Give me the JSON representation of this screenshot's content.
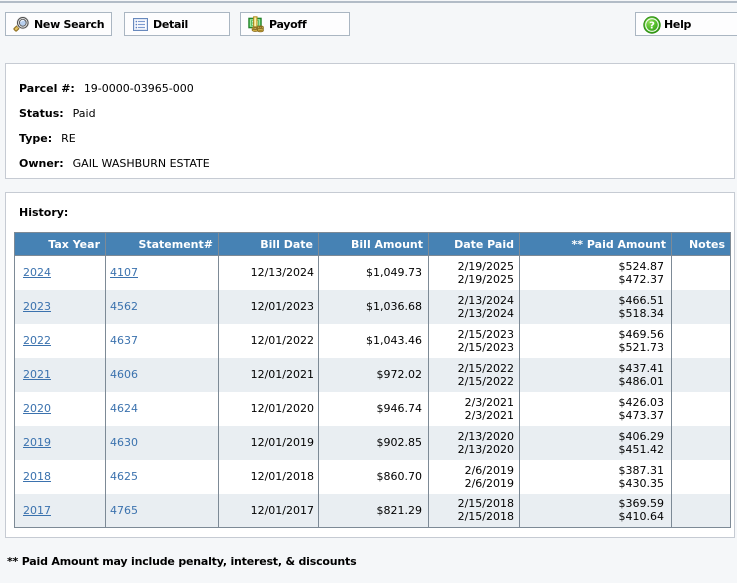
{
  "toolbar": {
    "new_search_label": "New Search",
    "detail_label": "Detail",
    "payoff_label": "Payoff",
    "help_label": "Help"
  },
  "parcel": {
    "parcel_label": "Parcel #:",
    "parcel_number": "19-0000-03965-000",
    "status_label": "Status:",
    "status_value": "Paid",
    "type_label": "Type:",
    "type_value": "RE",
    "owner_label": "Owner:",
    "owner_value": "GAIL WASHBURN ESTATE"
  },
  "history": {
    "section_label": "History:",
    "columns": [
      "Tax Year",
      "Statement#",
      "Bill Date",
      "Bill Amount",
      "Date Paid",
      "** Paid Amount",
      "Notes"
    ],
    "rows": [
      {
        "tax_year": "2024",
        "statement": "4107",
        "statement_underlined": true,
        "bill_date": "12/13/2024",
        "bill_amount": "$1,049.73",
        "date_paid": [
          "2/19/2025",
          "2/19/2025"
        ],
        "paid_amount": [
          "$524.87",
          "$472.37"
        ],
        "notes": ""
      },
      {
        "tax_year": "2023",
        "statement": "4562",
        "statement_underlined": false,
        "bill_date": "12/01/2023",
        "bill_amount": "$1,036.68",
        "date_paid": [
          "2/13/2024",
          "2/13/2024"
        ],
        "paid_amount": [
          "$466.51",
          "$518.34"
        ],
        "notes": ""
      },
      {
        "tax_year": "2022",
        "statement": "4637",
        "statement_underlined": false,
        "bill_date": "12/01/2022",
        "bill_amount": "$1,043.46",
        "date_paid": [
          "2/15/2023",
          "2/15/2023"
        ],
        "paid_amount": [
          "$469.56",
          "$521.73"
        ],
        "notes": ""
      },
      {
        "tax_year": "2021",
        "statement": "4606",
        "statement_underlined": false,
        "bill_date": "12/01/2021",
        "bill_amount": "$972.02",
        "date_paid": [
          "2/15/2022",
          "2/15/2022"
        ],
        "paid_amount": [
          "$437.41",
          "$486.01"
        ],
        "notes": ""
      },
      {
        "tax_year": "2020",
        "statement": "4624",
        "statement_underlined": false,
        "bill_date": "12/01/2020",
        "bill_amount": "$946.74",
        "date_paid": [
          "2/3/2021",
          "2/3/2021"
        ],
        "paid_amount": [
          "$426.03",
          "$473.37"
        ],
        "notes": ""
      },
      {
        "tax_year": "2019",
        "statement": "4630",
        "statement_underlined": false,
        "bill_date": "12/01/2019",
        "bill_amount": "$902.85",
        "date_paid": [
          "2/13/2020",
          "2/13/2020"
        ],
        "paid_amount": [
          "$406.29",
          "$451.42"
        ],
        "notes": ""
      },
      {
        "tax_year": "2018",
        "statement": "4625",
        "statement_underlined": false,
        "bill_date": "12/01/2018",
        "bill_amount": "$860.70",
        "date_paid": [
          "2/6/2019",
          "2/6/2019"
        ],
        "paid_amount": [
          "$387.31",
          "$430.35"
        ],
        "notes": ""
      },
      {
        "tax_year": "2017",
        "statement": "4765",
        "statement_underlined": false,
        "bill_date": "12/01/2017",
        "bill_amount": "$821.29",
        "date_paid": [
          "2/15/2018",
          "2/15/2018"
        ],
        "paid_amount": [
          "$369.59",
          "$410.64"
        ],
        "notes": ""
      }
    ],
    "footnote": "** Paid Amount may include penalty, interest, & discounts"
  },
  "colors": {
    "table_header_bg": "#4682b4",
    "table_row_alt_bg": "#e9eef2",
    "link": "#3b72ae",
    "page_bg": "#f5f7f9",
    "panel_border": "#c6cbd3",
    "table_border": "#7d8a96"
  },
  "chart_data": {
    "type": "table",
    "title": "History",
    "columns": [
      "Tax Year",
      "Statement#",
      "Bill Date",
      "Bill Amount",
      "Date Paid",
      "** Paid Amount",
      "Notes"
    ],
    "rows": [
      [
        "2024",
        "4107",
        "12/13/2024",
        "$1,049.73",
        "2/19/2025 2/19/2025",
        "$524.87 $472.37",
        ""
      ],
      [
        "2023",
        "4562",
        "12/01/2023",
        "$1,036.68",
        "2/13/2024 2/13/2024",
        "$466.51 $518.34",
        ""
      ],
      [
        "2022",
        "4637",
        "12/01/2022",
        "$1,043.46",
        "2/15/2023 2/15/2023",
        "$469.56 $521.73",
        ""
      ],
      [
        "2021",
        "4606",
        "12/01/2021",
        "$972.02",
        "2/15/2022 2/15/2022",
        "$437.41 $486.01",
        ""
      ],
      [
        "2020",
        "4624",
        "12/01/2020",
        "$946.74",
        "2/3/2021 2/3/2021",
        "$426.03 $473.37",
        ""
      ],
      [
        "2019",
        "4630",
        "12/01/2019",
        "$902.85",
        "2/13/2020 2/13/2020",
        "$406.29 $451.42",
        ""
      ],
      [
        "2018",
        "4625",
        "12/01/2018",
        "$860.70",
        "2/6/2019 2/6/2019",
        "$387.31 $430.35",
        ""
      ],
      [
        "2017",
        "4765",
        "12/01/2017",
        "$821.29",
        "2/15/2018 2/15/2018",
        "$369.59 $410.64",
        ""
      ]
    ]
  }
}
